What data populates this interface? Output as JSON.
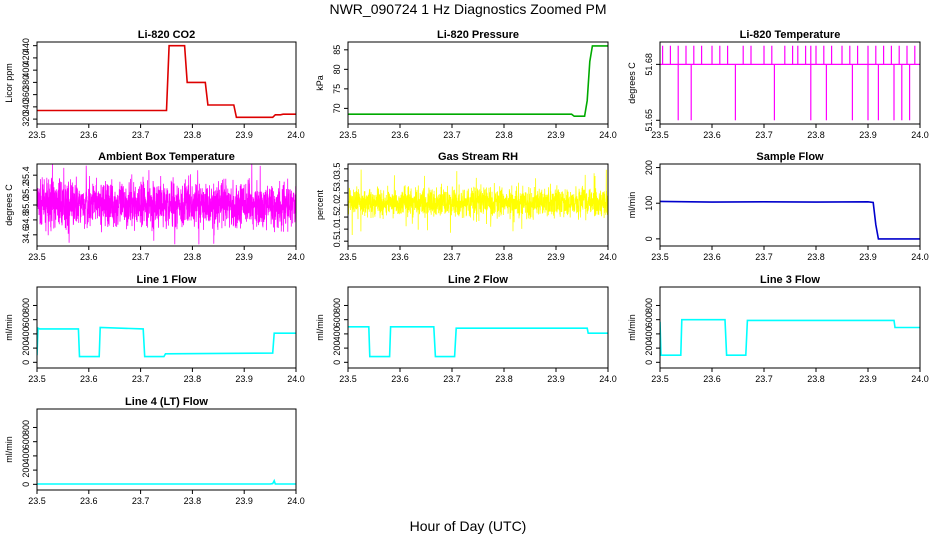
{
  "title": "NWR_090724  1 Hz Diagnostics Zoomed PM",
  "xlabel": "Hour of Day (UTC)",
  "chart_data": [
    {
      "type": "line",
      "title": "Li-820 CO2",
      "ylabel": "Licor ppm",
      "color": "#dd0000",
      "xlim": [
        23.5,
        24.0
      ],
      "ylim": [
        312,
        446
      ],
      "xticks": [
        23.5,
        23.6,
        23.7,
        23.8,
        23.9,
        24.0
      ],
      "xtick_labels": [
        "23.5",
        "23.6",
        "23.7",
        "23.8",
        "23.9",
        "24.0"
      ],
      "yticks": [
        320,
        340,
        360,
        380,
        400,
        420,
        440
      ],
      "ytick_labels": [
        "320",
        "340",
        "360",
        "380",
        "400",
        "420",
        "440"
      ],
      "series": [
        {
          "name": "CO2",
          "x": [
            23.5,
            23.6,
            23.68,
            23.75,
            23.755,
            23.785,
            23.79,
            23.825,
            23.83,
            23.85,
            23.855,
            23.88,
            23.885,
            23.955,
            23.96,
            23.97,
            23.975,
            24.0
          ],
          "y": [
            334,
            334,
            334,
            334,
            440,
            440,
            380,
            380,
            343,
            343,
            343,
            343,
            323,
            323,
            327,
            327,
            328,
            328
          ]
        }
      ]
    },
    {
      "type": "line",
      "title": "Li-820 Pressure",
      "ylabel": "kPa",
      "color": "#00aa00",
      "xlim": [
        23.5,
        24.0
      ],
      "ylim": [
        66,
        87
      ],
      "xticks": [
        23.5,
        23.6,
        23.7,
        23.8,
        23.9,
        24.0
      ],
      "xtick_labels": [
        "23.5",
        "23.6",
        "23.7",
        "23.8",
        "23.9",
        "24.0"
      ],
      "yticks": [
        70,
        75,
        80,
        85
      ],
      "ytick_labels": [
        "70",
        "75",
        "80",
        "85"
      ],
      "series": [
        {
          "name": "Pressure",
          "x": [
            23.5,
            23.93,
            23.935,
            23.955,
            23.96,
            23.965,
            23.97,
            24.0
          ],
          "y": [
            68.5,
            68.5,
            68,
            68,
            72,
            82,
            86,
            86
          ]
        }
      ]
    },
    {
      "type": "line",
      "title": "Li-820 Temperature",
      "ylabel": "degrees C",
      "color": "#ff00ff",
      "xlim": [
        23.5,
        24.0
      ],
      "ylim": [
        51.648,
        51.692
      ],
      "xticks": [
        23.5,
        23.6,
        23.7,
        23.8,
        23.9,
        24.0
      ],
      "xtick_labels": [
        "23.5",
        "23.6",
        "23.7",
        "23.8",
        "23.9",
        "24.0"
      ],
      "yticks": [
        51.65,
        51.68
      ],
      "ytick_labels": [
        "51.65",
        "51.68"
      ],
      "base": 51.68,
      "high": 51.69,
      "low": 51.65,
      "up_spikes": [
        23.505,
        23.52,
        23.535,
        23.55,
        23.565,
        23.58,
        23.6,
        23.615,
        23.63,
        23.66,
        23.675,
        23.7,
        23.715,
        23.74,
        23.755,
        23.765,
        23.78,
        23.79,
        23.8,
        23.815,
        23.83,
        23.85,
        23.865,
        23.88,
        23.9,
        23.915,
        23.93,
        23.945,
        23.96,
        23.975,
        23.99
      ],
      "down_spikes": [
        23.535,
        23.56,
        23.645,
        23.72,
        23.79,
        23.82,
        23.87,
        23.9,
        23.92,
        23.95,
        23.965,
        23.98
      ]
    },
    {
      "type": "line",
      "title": "Ambient Box Temperature",
      "ylabel": "degrees C",
      "color": "#ff00ff",
      "xlim": [
        23.5,
        24.0
      ],
      "ylim": [
        34.45,
        35.55
      ],
      "xticks": [
        23.5,
        23.6,
        23.7,
        23.8,
        23.9,
        24.0
      ],
      "xtick_labels": [
        "23.5",
        "23.6",
        "23.7",
        "23.8",
        "23.9",
        "24.0"
      ],
      "yticks": [
        34.6,
        34.8,
        35.0,
        35.2,
        35.4
      ],
      "ytick_labels": [
        "34.6",
        "34.8",
        "35.0",
        "35.2",
        "35.4"
      ],
      "noise": {
        "center": 35.0,
        "amp": 0.3,
        "spike": 0.55,
        "n": 1800,
        "seed": 7
      }
    },
    {
      "type": "line",
      "title": "Gas Stream RH",
      "ylabel": "percent",
      "color": "#ffff00",
      "xlim": [
        23.5,
        24.0
      ],
      "ylim": [
        0.3,
        3.7
      ],
      "xticks": [
        23.5,
        23.6,
        23.7,
        23.8,
        23.9,
        24.0
      ],
      "xtick_labels": [
        "23.5",
        "23.6",
        "23.7",
        "23.8",
        "23.9",
        "24.0"
      ],
      "yticks": [
        0.5,
        1.0,
        1.5,
        2.0,
        2.5,
        3.0,
        3.5
      ],
      "ytick_labels": [
        "0.5",
        "1.0",
        "1.5",
        "2.0",
        "2.5",
        "3.0",
        "3.5"
      ],
      "noise": {
        "center": 2.1,
        "amp": 0.6,
        "spike": 1.4,
        "n": 1800,
        "seed": 11
      }
    },
    {
      "type": "line",
      "title": "Sample Flow",
      "ylabel": "ml/min",
      "color": "#0000cc",
      "xlim": [
        23.5,
        24.0
      ],
      "ylim": [
        -20,
        210
      ],
      "xticks": [
        23.5,
        23.6,
        23.7,
        23.8,
        23.9,
        24.0
      ],
      "xtick_labels": [
        "23.5",
        "23.6",
        "23.7",
        "23.8",
        "23.9",
        "24.0"
      ],
      "yticks": [
        0,
        100,
        200
      ],
      "ytick_labels": [
        "0",
        "100",
        "200"
      ],
      "series": [
        {
          "name": "Flow",
          "x": [
            23.5,
            23.6,
            23.7,
            23.8,
            23.9,
            23.91,
            23.915,
            23.92,
            24.0
          ],
          "y": [
            105,
            103,
            104,
            103,
            104,
            102,
            40,
            0,
            0
          ]
        }
      ]
    },
    {
      "type": "line",
      "title": "Line 1 Flow",
      "ylabel": "ml/min",
      "color": "#00ffff",
      "xlim": [
        23.5,
        24.0
      ],
      "ylim": [
        -80,
        1060
      ],
      "xticks": [
        23.5,
        23.6,
        23.7,
        23.8,
        23.9,
        24.0
      ],
      "xtick_labels": [
        "23.5",
        "23.6",
        "23.7",
        "23.8",
        "23.9",
        "24.0"
      ],
      "yticks": [
        0,
        200,
        400,
        600,
        800
      ],
      "ytick_labels": [
        "0",
        "200",
        "400",
        "600",
        "800"
      ],
      "series": [
        {
          "name": "Line 1",
          "x": [
            23.5,
            23.502,
            23.505,
            23.58,
            23.582,
            23.62,
            23.622,
            23.705,
            23.708,
            23.745,
            23.748,
            23.955,
            23.958,
            24.0
          ],
          "y": [
            100,
            480,
            470,
            470,
            80,
            80,
            490,
            470,
            80,
            80,
            120,
            130,
            410,
            410
          ]
        }
      ]
    },
    {
      "type": "line",
      "title": "Line 2 Flow",
      "ylabel": "ml/min",
      "color": "#00ffff",
      "xlim": [
        23.5,
        24.0
      ],
      "ylim": [
        -80,
        1060
      ],
      "xticks": [
        23.5,
        23.6,
        23.7,
        23.8,
        23.9,
        24.0
      ],
      "xtick_labels": [
        "23.5",
        "23.6",
        "23.7",
        "23.8",
        "23.9",
        "24.0"
      ],
      "yticks": [
        0,
        200,
        400,
        600,
        800
      ],
      "ytick_labels": [
        "0",
        "200",
        "400",
        "600",
        "800"
      ],
      "series": [
        {
          "name": "Line 2",
          "x": [
            23.5,
            23.54,
            23.542,
            23.58,
            23.582,
            23.665,
            23.668,
            23.705,
            23.708,
            23.96,
            23.962,
            24.0
          ],
          "y": [
            500,
            500,
            80,
            80,
            500,
            500,
            80,
            80,
            480,
            480,
            410,
            410
          ]
        }
      ]
    },
    {
      "type": "line",
      "title": "Line 3 Flow",
      "ylabel": "ml/min",
      "color": "#00ffff",
      "xlim": [
        23.5,
        24.0
      ],
      "ylim": [
        -80,
        1060
      ],
      "xticks": [
        23.5,
        23.6,
        23.7,
        23.8,
        23.9,
        24.0
      ],
      "xtick_labels": [
        "23.5",
        "23.6",
        "23.7",
        "23.8",
        "23.9",
        "24.0"
      ],
      "yticks": [
        0,
        200,
        400,
        600,
        800
      ],
      "ytick_labels": [
        "0",
        "200",
        "400",
        "600",
        "800"
      ],
      "series": [
        {
          "name": "Line 3",
          "x": [
            23.5,
            23.502,
            23.505,
            23.54,
            23.542,
            23.625,
            23.628,
            23.665,
            23.668,
            23.95,
            23.952,
            24.0
          ],
          "y": [
            570,
            100,
            100,
            100,
            600,
            600,
            100,
            100,
            590,
            590,
            490,
            490
          ]
        }
      ]
    },
    {
      "type": "line",
      "title": "Line 4 (LT) Flow",
      "ylabel": "ml/min",
      "color": "#00ffff",
      "xlim": [
        23.5,
        24.0
      ],
      "ylim": [
        -80,
        1060
      ],
      "xticks": [
        23.5,
        23.6,
        23.7,
        23.8,
        23.9,
        24.0
      ],
      "xtick_labels": [
        "23.5",
        "23.6",
        "23.7",
        "23.8",
        "23.9",
        "24.0"
      ],
      "yticks": [
        0,
        200,
        400,
        600,
        800
      ],
      "ytick_labels": [
        "0",
        "200",
        "400",
        "600",
        "800"
      ],
      "series": [
        {
          "name": "Line 4",
          "x": [
            23.5,
            23.95,
            23.955,
            23.958,
            23.96,
            24.0
          ],
          "y": [
            5,
            5,
            10,
            50,
            5,
            5
          ]
        }
      ]
    }
  ]
}
